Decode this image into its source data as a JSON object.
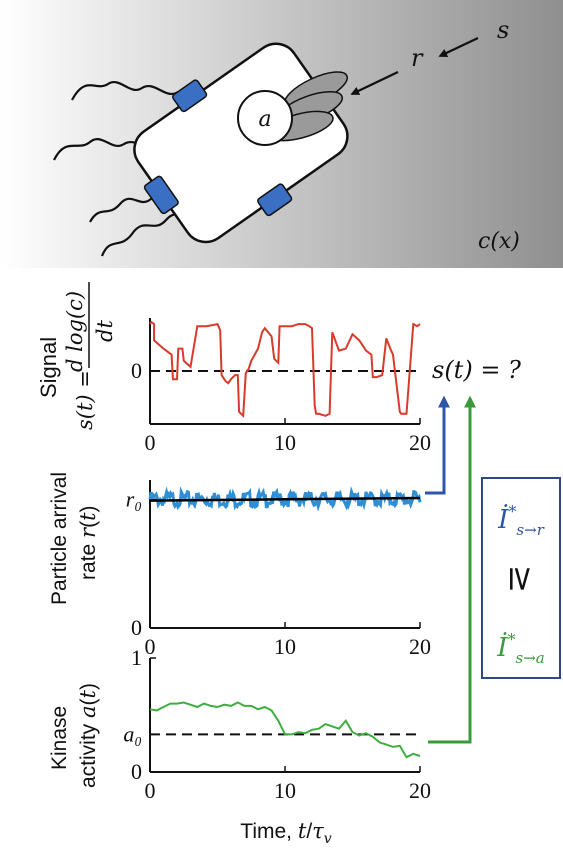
{
  "top_panel": {
    "labels": {
      "cell_receptor": "a",
      "arrow_r": "r",
      "arrow_s": "s",
      "concentration": "c(x)"
    },
    "colors": {
      "gradient_start": "#ffffff",
      "gradient_end": "#8f8f8f",
      "receptor": "#3a6fc4",
      "flagella": "#999999",
      "body": "#ffffff",
      "outline": "#111111"
    }
  },
  "eq_label": "s(t) = ?",
  "inequality": {
    "top": "İ*s→r",
    "symbol": "≥",
    "bottom": "İ*s→a",
    "top_color": "#2e56a8",
    "bottom_color": "#3a9a3a",
    "border_color": "#2d4a86"
  },
  "xlabel": "Time, t/τ_v",
  "xticks": [
    "0",
    "10",
    "20"
  ],
  "chart_data": [
    {
      "type": "line",
      "ylabel": "Signal s(t) = d log(c) / dt",
      "yticks": [
        "0"
      ],
      "xlim": [
        0,
        20
      ],
      "ylim": [
        -1.3,
        1.3
      ],
      "reference_line": {
        "y": 0,
        "style": "dashed"
      },
      "series": [
        {
          "color": "#d93a2b",
          "x": [
            0,
            0.1,
            0.3,
            0.3,
            1,
            1.6,
            1.7,
            2,
            2.1,
            2.4,
            2.5,
            3,
            3.5,
            4.2,
            5,
            5.2,
            5.3,
            5.6,
            5.8,
            6,
            6.3,
            6.5,
            6.6,
            6.9,
            7.1,
            7.3,
            7.5,
            8,
            8.3,
            8.5,
            9,
            9.2,
            9.5,
            9.6,
            9.9,
            10,
            10.2,
            10.3,
            10.5,
            11,
            11.5,
            11.8,
            12,
            12.2,
            12.3,
            12.5,
            13,
            13.3,
            13.5,
            14,
            14.5,
            15,
            15.5,
            16,
            16.4,
            16.5,
            16.8,
            17.2,
            17.5,
            17.8,
            18,
            18.5,
            18.6,
            19,
            19.5,
            19.8,
            20
          ],
          "values": [
            1.15,
            1.2,
            1.15,
            0.75,
            0.55,
            0.4,
            -0.2,
            -0.2,
            0.55,
            0.55,
            0.25,
            0.1,
            1.1,
            1.1,
            1.15,
            1.0,
            -0.1,
            -0.25,
            -0.3,
            -0.2,
            -0.1,
            -0.1,
            -1.0,
            -1.1,
            -0.05,
            0.05,
            0.25,
            0.55,
            0.95,
            1.05,
            0.85,
            0.3,
            0.2,
            1.1,
            1.1,
            1.1,
            1.1,
            1.1,
            1.1,
            1.15,
            1.15,
            1.1,
            1.05,
            -0.85,
            -1.05,
            -1.05,
            -1.1,
            -1.05,
            0.95,
            0.5,
            0.55,
            0.9,
            0.75,
            0.5,
            0.4,
            -0.15,
            -0.15,
            -0.1,
            0.8,
            0.55,
            0.4,
            -1.0,
            -1.05,
            -1.05,
            1.15,
            1.1,
            1.15
          ]
        }
      ]
    },
    {
      "type": "line",
      "ylabel": "Particle arrival rate r(t)",
      "yticks": [
        "0",
        "r₀"
      ],
      "xlim": [
        0,
        20
      ],
      "ylim": [
        0,
        1.15
      ],
      "series": [
        {
          "name": "",
          "color": "#2f8fd6",
          "style": "noisy",
          "x": [
            0,
            20
          ],
          "values": [
            1.0,
            1.0
          ]
        },
        {
          "name": "",
          "color": "#000000",
          "style": "mean",
          "x": [
            0,
            10,
            20
          ],
          "values": [
            0.99,
            1.0,
            1.01
          ]
        }
      ]
    },
    {
      "type": "line",
      "ylabel": "Kinase activity a(t)",
      "yticks": [
        "0",
        "a₀",
        "1"
      ],
      "xlim": [
        0,
        20
      ],
      "ylim": [
        0,
        1
      ],
      "reference_line": {
        "y": 0.33,
        "style": "dashed"
      },
      "series": [
        {
          "color": "#3fae3f",
          "x": [
            0,
            0.5,
            1,
            1.5,
            2,
            2.5,
            3,
            3.5,
            4,
            4.5,
            5,
            5.5,
            6,
            6.5,
            7,
            7.5,
            8,
            8.5,
            9,
            9.5,
            10,
            10.5,
            11,
            11.5,
            12,
            12.5,
            13,
            13.5,
            14,
            14.5,
            15,
            15.5,
            16,
            16.5,
            17,
            17.5,
            18,
            18.5,
            19,
            19.5,
            20
          ],
          "values": [
            0.55,
            0.54,
            0.57,
            0.6,
            0.6,
            0.61,
            0.59,
            0.57,
            0.6,
            0.58,
            0.57,
            0.59,
            0.58,
            0.61,
            0.58,
            0.58,
            0.55,
            0.57,
            0.54,
            0.45,
            0.33,
            0.33,
            0.35,
            0.34,
            0.37,
            0.38,
            0.42,
            0.4,
            0.38,
            0.45,
            0.35,
            0.32,
            0.34,
            0.31,
            0.26,
            0.24,
            0.22,
            0.23,
            0.13,
            0.16,
            0.14
          ]
        }
      ]
    }
  ]
}
